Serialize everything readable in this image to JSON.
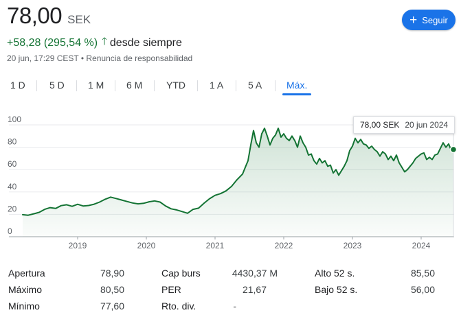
{
  "quote": {
    "price": "78,00",
    "currency": "SEK",
    "change": "+58,28 (295,54 %)",
    "change_period": "desde siempre",
    "timestamp": "20 jun, 17:29 CEST",
    "separator": "•",
    "disclaimer": "Renuncia de responsabilidad"
  },
  "follow_button": {
    "label": "Seguir"
  },
  "tabs": [
    {
      "label": "1 D",
      "active": false
    },
    {
      "label": "5 D",
      "active": false
    },
    {
      "label": "1 M",
      "active": false
    },
    {
      "label": "6 M",
      "active": false
    },
    {
      "label": "YTD",
      "active": false
    },
    {
      "label": "1 A",
      "active": false
    },
    {
      "label": "5 A",
      "active": false
    },
    {
      "label": "Máx.",
      "active": true
    }
  ],
  "tooltip": {
    "value": "78,00 SEK",
    "date": "20 jun 2024"
  },
  "chart_data": {
    "type": "area",
    "yticks": [
      "100",
      "80",
      "60",
      "40",
      "20",
      "0"
    ],
    "xticks": [
      "2019",
      "2020",
      "2021",
      "2022",
      "2023",
      "2024"
    ],
    "ylim": [
      0,
      100
    ],
    "line_color": "#137333",
    "fill_color": "#e6f4ea",
    "series": [
      {
        "x": [
          2018.2,
          2018.28,
          2018.36,
          2018.44,
          2018.52,
          2018.6,
          2018.68,
          2018.76,
          2018.84,
          2018.92,
          2019.0,
          2019.08,
          2019.16,
          2019.24,
          2019.32,
          2019.4,
          2019.48,
          2019.56,
          2019.64,
          2019.72,
          2019.8,
          2019.88,
          2019.96,
          2020.04,
          2020.12,
          2020.2,
          2020.28,
          2020.36,
          2020.44,
          2020.52,
          2020.6,
          2020.68,
          2020.76,
          2020.84,
          2020.92,
          2021.0,
          2021.08,
          2021.16,
          2021.24,
          2021.32,
          2021.4,
          2021.44,
          2021.48,
          2021.52,
          2021.56,
          2021.6,
          2021.64,
          2021.68,
          2021.72,
          2021.76,
          2021.8,
          2021.84,
          2021.88,
          2021.92,
          2021.96,
          2022.0,
          2022.04,
          2022.08,
          2022.12,
          2022.16,
          2022.2,
          2022.24,
          2022.28,
          2022.32,
          2022.36,
          2022.4,
          2022.44,
          2022.48,
          2022.52,
          2022.56,
          2022.6,
          2022.64,
          2022.68,
          2022.72,
          2022.76,
          2022.8,
          2022.84,
          2022.88,
          2022.92,
          2022.96,
          2023.0,
          2023.04,
          2023.08,
          2023.12,
          2023.16,
          2023.2,
          2023.24,
          2023.28,
          2023.32,
          2023.36,
          2023.4,
          2023.44,
          2023.48,
          2023.52,
          2023.56,
          2023.6,
          2023.64,
          2023.68,
          2023.72,
          2023.76,
          2023.8,
          2023.84,
          2023.88,
          2023.92,
          2023.96,
          2024.0,
          2024.04,
          2024.08,
          2024.12,
          2024.16,
          2024.2,
          2024.24,
          2024.28,
          2024.32,
          2024.36,
          2024.4,
          2024.44,
          2024.47
        ],
        "y": [
          19.7,
          19.2,
          20.5,
          21.8,
          24.5,
          26.0,
          25.3,
          27.8,
          28.6,
          27.2,
          29.0,
          27.5,
          27.9,
          29.1,
          31.0,
          33.5,
          35.4,
          34.2,
          32.8,
          31.5,
          30.2,
          29.4,
          29.9,
          31.2,
          32.0,
          31.0,
          27.5,
          25.0,
          24.0,
          22.5,
          21.0,
          24.5,
          25.5,
          30.0,
          34.0,
          37.0,
          38.5,
          41.0,
          45.0,
          51.0,
          56.0,
          62.0,
          68.0,
          82.0,
          95.0,
          84.0,
          80.0,
          92.0,
          97.0,
          90.0,
          82.0,
          88.0,
          91.0,
          97.0,
          89.0,
          92.0,
          88.0,
          86.0,
          90.0,
          86.0,
          80.0,
          90.0,
          84.0,
          80.0,
          73.0,
          74.0,
          68.0,
          65.0,
          70.0,
          66.0,
          68.0,
          63.0,
          64.0,
          57.0,
          60.0,
          55.0,
          59.0,
          63.0,
          68.0,
          77.0,
          81.0,
          88.0,
          84.0,
          87.0,
          83.0,
          82.0,
          79.0,
          81.0,
          78.0,
          76.0,
          72.0,
          76.0,
          74.0,
          69.0,
          72.0,
          68.0,
          73.0,
          66.0,
          62.0,
          58.0,
          60.0,
          63.0,
          66.0,
          70.0,
          72.0,
          74.0,
          75.0,
          69.0,
          71.0,
          69.0,
          73.0,
          74.0,
          79.0,
          84.0,
          80.0,
          83.0,
          77.0,
          78.0
        ]
      }
    ]
  },
  "stats": [
    {
      "label": "Apertura",
      "value": "78,90"
    },
    {
      "label": "Máximo",
      "value": "80,50"
    },
    {
      "label": "Mínimo",
      "value": "77,60"
    },
    {
      "label": "Cap burs",
      "value": "4430,37 M"
    },
    {
      "label": "PER",
      "value": "21,67"
    },
    {
      "label": "Rto. div.",
      "value": "-"
    },
    {
      "label": "Alto 52 s.",
      "value": "85,50"
    },
    {
      "label": "Bajo 52 s.",
      "value": "56,00"
    }
  ]
}
